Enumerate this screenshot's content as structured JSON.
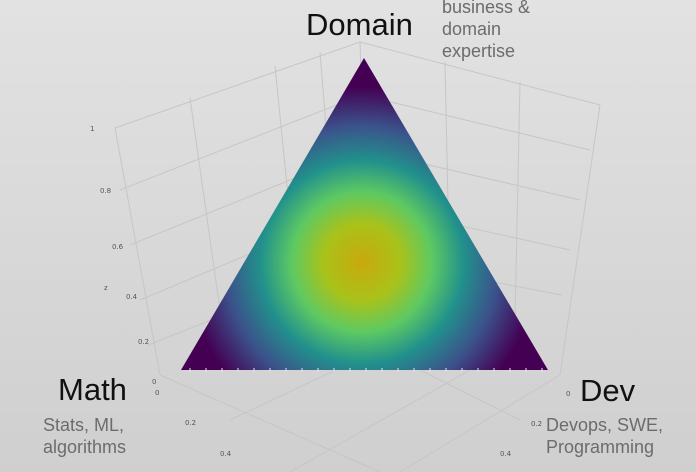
{
  "vertices": {
    "domain": {
      "title": "Domain",
      "description": "business &\ndomain\nexpertise"
    },
    "math": {
      "title": "Math",
      "description": "Stats, ML,\nalgorithms"
    },
    "dev": {
      "title": "Dev",
      "description": "Devops, SWE,\nProgramming"
    }
  },
  "axes": {
    "z_label": "z",
    "z_ticks": [
      "1",
      "0.8",
      "0.6",
      "0.4",
      "0.2",
      "0"
    ],
    "x_ticks": [
      "0",
      "0.2",
      "0.4"
    ],
    "y_ticks": [
      "0",
      "0.2",
      "0.4"
    ]
  },
  "colors": {
    "background": "#dcdcdc",
    "colormap": [
      "#440154",
      "#3b528b",
      "#21918c",
      "#5ec962",
      "#c8b40a"
    ]
  }
}
